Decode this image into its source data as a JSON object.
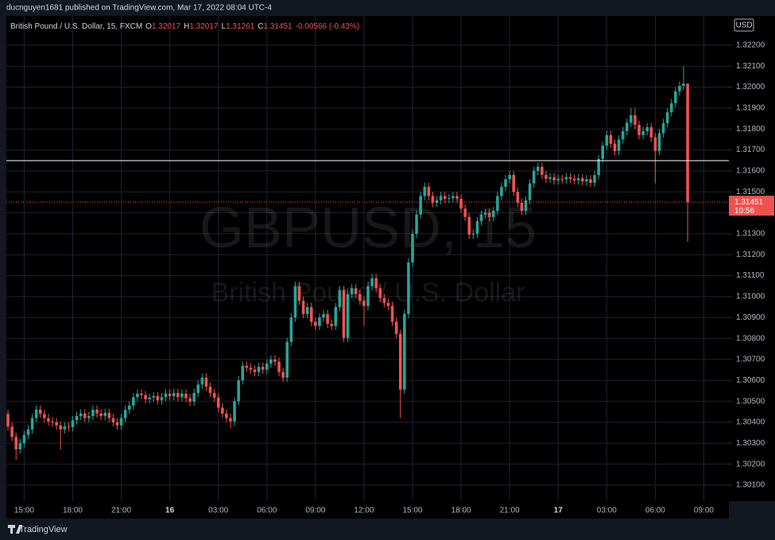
{
  "header": {
    "text": "ducnguyen1681 published on TradingView.com, Mar 17, 2022 08:04 UTC-4"
  },
  "chart_data": {
    "type": "candlestick",
    "symbol_title": "British Pound / U.S. Dollar, 15, FXCM",
    "legend_items": [
      {
        "key": "O",
        "value": 1.32017
      },
      {
        "key": "H",
        "value": 1.32017
      },
      {
        "key": "L",
        "value": 1.31261
      },
      {
        "key": "C",
        "value": 1.31451
      }
    ],
    "change": "-0.00566 (-0.43%)",
    "watermark_symbol": "GBPUSD, 15",
    "watermark_name": "British Pound / U.S. Dollar",
    "currency": "USD",
    "up_color": "#26a69a",
    "down_color": "#ef5350",
    "grid": true,
    "hline": 1.31649,
    "hline_color": "#ffffff",
    "last_price": 1.31451,
    "countdown": "10:56",
    "xlim": [
      -0.4,
      178.2
    ],
    "xticks": [
      {
        "value": 4,
        "label": "15:00"
      },
      {
        "value": 16,
        "label": "18:00"
      },
      {
        "value": 28,
        "label": "21:00"
      },
      {
        "value": 40,
        "label": "16"
      },
      {
        "value": 52,
        "label": "03:00"
      },
      {
        "value": 64,
        "label": "06:00"
      },
      {
        "value": 76,
        "label": "09:00"
      },
      {
        "value": 88,
        "label": "12:00"
      },
      {
        "value": 100,
        "label": "15:00"
      },
      {
        "value": 112,
        "label": "18:00"
      },
      {
        "value": 124,
        "label": "21:00"
      },
      {
        "value": 136,
        "label": "17"
      },
      {
        "value": 148,
        "label": "03:00"
      },
      {
        "value": 160,
        "label": "06:00"
      },
      {
        "value": 172,
        "label": "09:00"
      }
    ],
    "ylim": [
      1.30024,
      1.3234
    ],
    "yticks": [
      {
        "value": 1.301,
        "label": "1.30100"
      },
      {
        "value": 1.302,
        "label": "1.30200"
      },
      {
        "value": 1.303,
        "label": "1.30300"
      },
      {
        "value": 1.304,
        "label": "1.30400"
      },
      {
        "value": 1.305,
        "label": "1.30500"
      },
      {
        "value": 1.306,
        "label": "1.30600"
      },
      {
        "value": 1.307,
        "label": "1.30700"
      },
      {
        "value": 1.308,
        "label": "1.30800"
      },
      {
        "value": 1.309,
        "label": "1.30900"
      },
      {
        "value": 1.31,
        "label": "1.31000"
      },
      {
        "value": 1.311,
        "label": "1.31100"
      },
      {
        "value": 1.312,
        "label": "1.31200"
      },
      {
        "value": 1.313,
        "label": "1.31300"
      },
      {
        "value": 1.314,
        "label": "1.31400"
      },
      {
        "value": 1.315,
        "label": "1.31500"
      },
      {
        "value": 1.316,
        "label": "1.31600"
      },
      {
        "value": 1.317,
        "label": "1.31700"
      },
      {
        "value": 1.318,
        "label": "1.31800"
      },
      {
        "value": 1.319,
        "label": "1.31900"
      },
      {
        "value": 1.32,
        "label": "1.32000"
      },
      {
        "value": 1.321,
        "label": "1.32100"
      },
      {
        "value": 1.322,
        "label": "1.32200"
      }
    ],
    "open": [
      1.3044,
      1.3038,
      1.3033,
      1.30271,
      1.303,
      1.3034,
      1.30366,
      1.3042,
      1.30461,
      1.3044,
      1.3042,
      1.30404,
      1.304,
      1.30385,
      1.30366,
      1.3038,
      1.30377,
      1.3041,
      1.3043,
      1.30442,
      1.3042,
      1.3043,
      1.3046,
      1.30442,
      1.3043,
      1.30445,
      1.3042,
      1.304,
      1.30385,
      1.3042,
      1.3046,
      1.3048,
      1.3052,
      1.30537,
      1.3053,
      1.3051,
      1.30518,
      1.30525,
      1.30505,
      1.3052,
      1.30537,
      1.30525,
      1.3054,
      1.3052,
      1.30537,
      1.30515,
      1.30499,
      1.3054,
      1.3058,
      1.30613,
      1.3057,
      1.3054,
      1.30518,
      1.3047,
      1.30442,
      1.3042,
      1.30404,
      1.305,
      1.306,
      1.3067,
      1.3066,
      1.30651,
      1.3064,
      1.30665,
      1.30651,
      1.3068,
      1.307,
      1.30689,
      1.3064,
      1.30613,
      1.30784,
      1.309,
      1.3105,
      1.3098,
      1.30917,
      1.3095,
      1.3088,
      1.3086,
      1.309,
      1.30917,
      1.3087,
      1.3086,
      1.3095,
      1.31031,
      1.30803,
      1.31012,
      1.3104,
      1.31012,
      1.3098,
      1.30955,
      1.3105,
      1.31088,
      1.3104,
      1.30993,
      1.3097,
      1.30955,
      1.3088,
      1.30822,
      1.30556,
      1.30917,
      1.31163,
      1.313,
      1.31391,
      1.3148,
      1.31524,
      1.3148,
      1.31448,
      1.3146,
      1.3148,
      1.31467,
      1.3147,
      1.3148,
      1.31467,
      1.3142,
      1.3138,
      1.31296,
      1.313,
      1.3136,
      1.31391,
      1.314,
      1.3138,
      1.3141,
      1.3148,
      1.31524,
      1.3156,
      1.31581,
      1.315,
      1.31448,
      1.3141,
      1.3146,
      1.3154,
      1.316,
      1.3162,
      1.31581,
      1.31562,
      1.3157,
      1.31555,
      1.31562,
      1.3156,
      1.3157,
      1.31562,
      1.31555,
      1.31565,
      1.3155,
      1.3156,
      1.31543,
      1.3158,
      1.31657,
      1.3172,
      1.31771,
      1.3173,
      1.31695,
      1.3175,
      1.3179,
      1.3183,
      1.31866,
      1.3182,
      1.31771,
      1.3179,
      1.31809,
      1.3176,
      1.31695,
      1.3178,
      1.31828,
      1.3188,
      1.31923,
      1.3198,
      1.32006,
      1.32017
    ],
    "high": [
      1.3046,
      1.304,
      1.3035,
      1.3032,
      1.3036,
      1.30386,
      1.3044,
      1.30481,
      1.30481,
      1.3046,
      1.3044,
      1.30424,
      1.3042,
      1.30405,
      1.304,
      1.304,
      1.3043,
      1.3045,
      1.30462,
      1.30462,
      1.3045,
      1.3048,
      1.3048,
      1.30462,
      1.30465,
      1.30465,
      1.3044,
      1.3042,
      1.3044,
      1.3048,
      1.305,
      1.3054,
      1.30557,
      1.30557,
      1.3055,
      1.30538,
      1.30545,
      1.30545,
      1.3054,
      1.30557,
      1.30557,
      1.3056,
      1.3056,
      1.30557,
      1.30557,
      1.30535,
      1.3056,
      1.306,
      1.30633,
      1.30633,
      1.3059,
      1.3056,
      1.30538,
      1.3049,
      1.30462,
      1.3044,
      1.3052,
      1.3062,
      1.3069,
      1.3069,
      1.3068,
      1.30671,
      1.30685,
      1.30685,
      1.307,
      1.3072,
      1.3072,
      1.30709,
      1.3066,
      1.30804,
      1.3092,
      1.3107,
      1.3107,
      1.31,
      1.3097,
      1.3097,
      1.309,
      1.3092,
      1.30937,
      1.30937,
      1.3089,
      1.3097,
      1.31051,
      1.31051,
      1.31032,
      1.3106,
      1.3106,
      1.31032,
      1.31,
      1.3107,
      1.31108,
      1.31108,
      1.3106,
      1.31013,
      1.3099,
      1.30975,
      1.309,
      1.30842,
      1.30937,
      1.31183,
      1.3132,
      1.31411,
      1.315,
      1.31544,
      1.31544,
      1.315,
      1.3148,
      1.315,
      1.315,
      1.3149,
      1.315,
      1.315,
      1.31487,
      1.3144,
      1.314,
      1.3132,
      1.3138,
      1.31411,
      1.3142,
      1.3142,
      1.3143,
      1.315,
      1.31544,
      1.3158,
      1.31601,
      1.31601,
      1.3152,
      1.31468,
      1.3148,
      1.3156,
      1.3162,
      1.3164,
      1.3164,
      1.31601,
      1.3159,
      1.3159,
      1.31582,
      1.31582,
      1.3159,
      1.3159,
      1.31582,
      1.31585,
      1.31585,
      1.3158,
      1.3158,
      1.316,
      1.31677,
      1.3174,
      1.31791,
      1.31791,
      1.3175,
      1.3177,
      1.3181,
      1.3185,
      1.319,
      1.319,
      1.3184,
      1.3181,
      1.31829,
      1.31829,
      1.3178,
      1.318,
      1.31848,
      1.319,
      1.31943,
      1.32,
      1.32026,
      1.321,
      1.32017
    ],
    "low": [
      1.3036,
      1.3031,
      1.3022,
      1.30251,
      1.3028,
      1.3032,
      1.30346,
      1.304,
      1.3042,
      1.304,
      1.30384,
      1.3038,
      1.30365,
      1.3027,
      1.30346,
      1.30357,
      1.30357,
      1.3039,
      1.3041,
      1.304,
      1.304,
      1.3041,
      1.30422,
      1.3041,
      1.3041,
      1.304,
      1.3038,
      1.30365,
      1.30365,
      1.304,
      1.3044,
      1.3046,
      1.305,
      1.3051,
      1.3049,
      1.3049,
      1.30498,
      1.30485,
      1.30485,
      1.305,
      1.30505,
      1.30505,
      1.305,
      1.305,
      1.30495,
      1.30479,
      1.30479,
      1.3052,
      1.3056,
      1.3055,
      1.3052,
      1.30498,
      1.3045,
      1.30422,
      1.304,
      1.3037,
      1.30384,
      1.3048,
      1.3058,
      1.3064,
      1.30631,
      1.3062,
      1.3062,
      1.30631,
      1.30631,
      1.3066,
      1.30669,
      1.3062,
      1.30593,
      1.30593,
      1.30764,
      1.3088,
      1.3096,
      1.30897,
      1.30897,
      1.3086,
      1.3084,
      1.3084,
      1.3088,
      1.3085,
      1.3084,
      1.3084,
      1.3093,
      1.30783,
      1.30783,
      1.30992,
      1.30992,
      1.3096,
      1.3086,
      1.30935,
      1.3103,
      1.3102,
      1.30973,
      1.3095,
      1.30935,
      1.3086,
      1.30802,
      1.3042,
      1.30536,
      1.30897,
      1.31143,
      1.3128,
      1.31371,
      1.3146,
      1.3146,
      1.31428,
      1.31428,
      1.3144,
      1.31447,
      1.31447,
      1.3145,
      1.31447,
      1.314,
      1.3136,
      1.31276,
      1.31276,
      1.3128,
      1.3134,
      1.31371,
      1.3136,
      1.3136,
      1.3139,
      1.3146,
      1.31504,
      1.3154,
      1.3148,
      1.31428,
      1.3139,
      1.3139,
      1.3144,
      1.3152,
      1.3158,
      1.31561,
      1.31542,
      1.31542,
      1.31535,
      1.31535,
      1.3154,
      1.3154,
      1.31542,
      1.31535,
      1.31535,
      1.3153,
      1.3153,
      1.31523,
      1.31523,
      1.3156,
      1.31637,
      1.317,
      1.3171,
      1.31675,
      1.31675,
      1.3173,
      1.3177,
      1.3181,
      1.318,
      1.31751,
      1.31751,
      1.3177,
      1.3174,
      1.3154,
      1.31675,
      1.3176,
      1.31808,
      1.3186,
      1.31903,
      1.3196,
      1.31986,
      1.31261
    ],
    "close": [
      1.3038,
      1.3033,
      1.30271,
      1.303,
      1.3034,
      1.30366,
      1.3042,
      1.30461,
      1.3044,
      1.3042,
      1.30404,
      1.304,
      1.30385,
      1.30366,
      1.3038,
      1.30377,
      1.3041,
      1.3043,
      1.30442,
      1.3042,
      1.3043,
      1.3046,
      1.30442,
      1.3043,
      1.30445,
      1.3042,
      1.304,
      1.30385,
      1.3042,
      1.3046,
      1.3048,
      1.3052,
      1.30537,
      1.3053,
      1.3051,
      1.30518,
      1.30525,
      1.30505,
      1.3052,
      1.30537,
      1.30525,
      1.3054,
      1.3052,
      1.30537,
      1.30515,
      1.30499,
      1.3054,
      1.3058,
      1.30613,
      1.3057,
      1.3054,
      1.30518,
      1.3047,
      1.30442,
      1.3042,
      1.30404,
      1.305,
      1.306,
      1.3067,
      1.3066,
      1.30651,
      1.3064,
      1.30665,
      1.30651,
      1.3068,
      1.307,
      1.30689,
      1.3064,
      1.30613,
      1.30784,
      1.309,
      1.3105,
      1.3098,
      1.30917,
      1.3095,
      1.3088,
      1.3086,
      1.309,
      1.30917,
      1.3087,
      1.3086,
      1.3095,
      1.31031,
      1.30803,
      1.31012,
      1.3104,
      1.31012,
      1.3098,
      1.30955,
      1.3105,
      1.31088,
      1.3104,
      1.30993,
      1.3097,
      1.30955,
      1.3088,
      1.30822,
      1.30556,
      1.30917,
      1.31163,
      1.313,
      1.31391,
      1.3148,
      1.31524,
      1.3148,
      1.31448,
      1.3146,
      1.3148,
      1.31467,
      1.3147,
      1.3148,
      1.31467,
      1.3142,
      1.3138,
      1.31296,
      1.313,
      1.3136,
      1.31391,
      1.314,
      1.3138,
      1.3141,
      1.3148,
      1.31524,
      1.3156,
      1.31581,
      1.315,
      1.31448,
      1.3141,
      1.3146,
      1.3154,
      1.316,
      1.3162,
      1.31581,
      1.31562,
      1.3157,
      1.31555,
      1.31562,
      1.3156,
      1.3157,
      1.31562,
      1.31555,
      1.31565,
      1.3155,
      1.3156,
      1.31543,
      1.3158,
      1.31657,
      1.3172,
      1.31771,
      1.3173,
      1.31695,
      1.3175,
      1.3179,
      1.3183,
      1.31866,
      1.3182,
      1.31771,
      1.3179,
      1.31809,
      1.3176,
      1.31695,
      1.3178,
      1.31828,
      1.3188,
      1.31923,
      1.3198,
      1.32006,
      1.32017,
      1.31451
    ]
  },
  "footer": {
    "brand": "TradingView"
  }
}
